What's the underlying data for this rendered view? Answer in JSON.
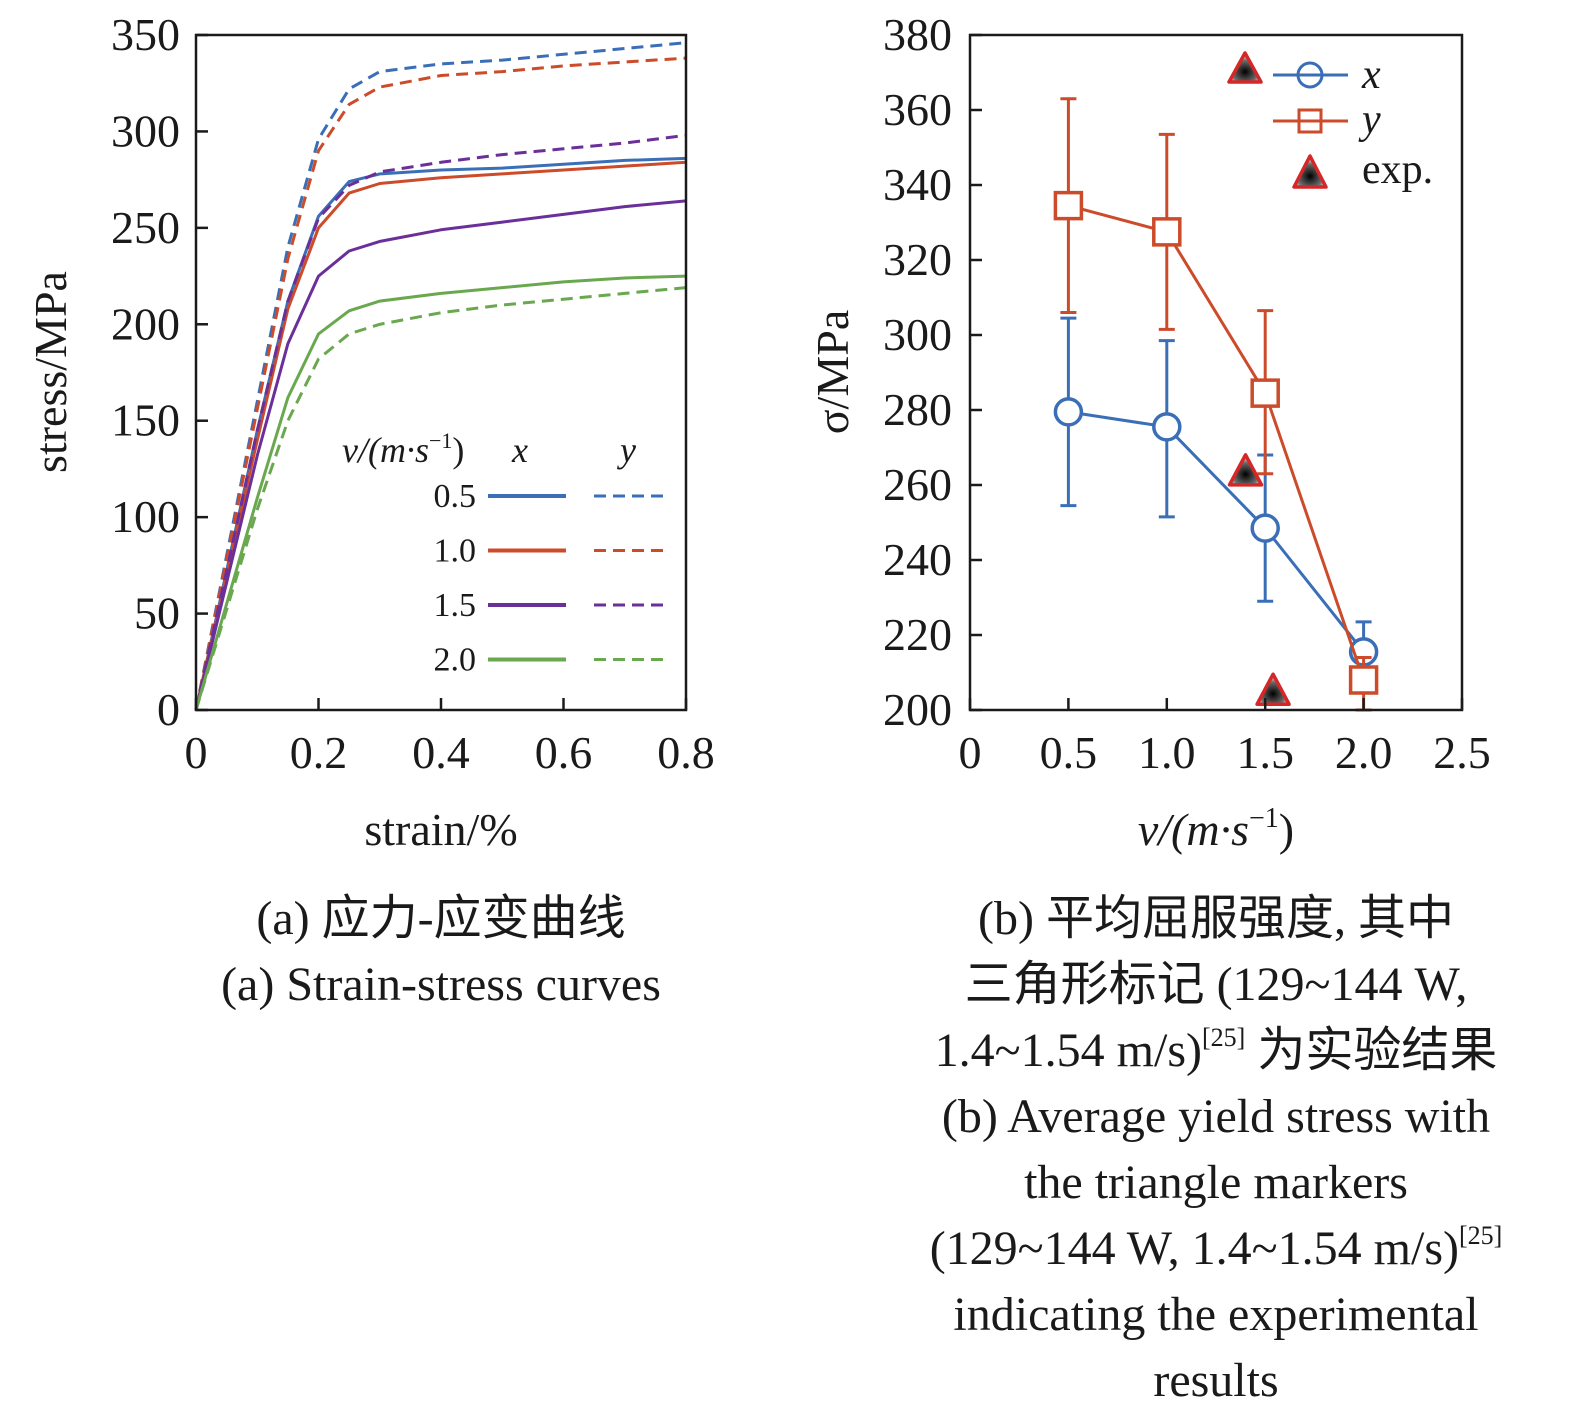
{
  "chart_data": [
    {
      "type": "line",
      "xlabel": "strain/%",
      "ylabel": "stress/MPa",
      "xlim": [
        0,
        0.8
      ],
      "ylim": [
        0,
        350
      ],
      "xticks": [
        "0",
        "0.2",
        "0.4",
        "0.6",
        "0.8"
      ],
      "yticks": [
        "0",
        "50",
        "100",
        "150",
        "200",
        "250",
        "300",
        "350"
      ],
      "grid": false,
      "legend": {
        "placement": "lower-right",
        "header": {
          "v": "v/(m·s",
          "exp": "−1",
          "close": ")",
          "x": "x",
          "y": "y"
        },
        "rows": [
          "0.5",
          "1.0",
          "1.5",
          "2.0"
        ]
      },
      "series": [
        {
          "name": "0.5 x",
          "color": "#3a6fb7",
          "style": "solid",
          "x": [
            0,
            0.05,
            0.1,
            0.15,
            0.2,
            0.25,
            0.3,
            0.4,
            0.5,
            0.6,
            0.7,
            0.8
          ],
          "y": [
            0,
            72,
            145,
            212,
            256,
            274,
            278,
            280,
            281,
            283,
            285,
            286
          ]
        },
        {
          "name": "0.5 y",
          "color": "#3a6fb7",
          "style": "dashed",
          "x": [
            0,
            0.05,
            0.1,
            0.15,
            0.2,
            0.25,
            0.3,
            0.4,
            0.5,
            0.6,
            0.7,
            0.8
          ],
          "y": [
            0,
            80,
            160,
            240,
            296,
            322,
            331,
            335,
            337,
            340,
            343,
            346
          ]
        },
        {
          "name": "1.0 x",
          "color": "#cc4b2a",
          "style": "solid",
          "x": [
            0,
            0.05,
            0.1,
            0.15,
            0.2,
            0.25,
            0.3,
            0.4,
            0.5,
            0.6,
            0.7,
            0.8
          ],
          "y": [
            0,
            70,
            140,
            208,
            250,
            268,
            273,
            276,
            278,
            280,
            282,
            284
          ]
        },
        {
          "name": "1.0 y",
          "color": "#cc4b2a",
          "style": "dashed",
          "x": [
            0,
            0.05,
            0.1,
            0.15,
            0.2,
            0.25,
            0.3,
            0.4,
            0.5,
            0.6,
            0.7,
            0.8
          ],
          "y": [
            0,
            78,
            156,
            234,
            290,
            314,
            323,
            329,
            331,
            334,
            336,
            338
          ]
        },
        {
          "name": "1.5 x",
          "color": "#6b2f9a",
          "style": "solid",
          "x": [
            0,
            0.05,
            0.1,
            0.15,
            0.2,
            0.25,
            0.3,
            0.4,
            0.5,
            0.6,
            0.7,
            0.8
          ],
          "y": [
            0,
            66,
            132,
            190,
            225,
            238,
            243,
            249,
            253,
            257,
            261,
            264
          ]
        },
        {
          "name": "1.5 y",
          "color": "#6b2f9a",
          "style": "dashed",
          "x": [
            0,
            0.05,
            0.1,
            0.15,
            0.2,
            0.25,
            0.3,
            0.4,
            0.5,
            0.6,
            0.7,
            0.8
          ],
          "y": [
            0,
            72,
            145,
            212,
            255,
            272,
            279,
            284,
            288,
            291,
            294,
            298
          ]
        },
        {
          "name": "2.0 x",
          "color": "#6aa84f",
          "style": "solid",
          "x": [
            0,
            0.05,
            0.1,
            0.15,
            0.2,
            0.25,
            0.3,
            0.4,
            0.5,
            0.6,
            0.7,
            0.8
          ],
          "y": [
            0,
            55,
            110,
            162,
            195,
            207,
            212,
            216,
            219,
            222,
            224,
            225
          ]
        },
        {
          "name": "2.0 y",
          "color": "#6aa84f",
          "style": "dashed",
          "x": [
            0,
            0.05,
            0.1,
            0.15,
            0.2,
            0.25,
            0.3,
            0.4,
            0.5,
            0.6,
            0.7,
            0.8
          ],
          "y": [
            0,
            52,
            104,
            150,
            182,
            195,
            200,
            206,
            210,
            213,
            216,
            219
          ]
        }
      ]
    },
    {
      "type": "line",
      "xlabel": {
        "v": "v/(m·s",
        "exp": "−1",
        "close": ")"
      },
      "ylabel": "σ/MPa",
      "xlim": [
        0,
        2.5
      ],
      "ylim": [
        200,
        380
      ],
      "xticks": [
        "0",
        "0.5",
        "1.0",
        "1.5",
        "2.0",
        "2.5"
      ],
      "yticks": [
        "200",
        "220",
        "240",
        "260",
        "280",
        "300",
        "320",
        "340",
        "360",
        "380"
      ],
      "grid": false,
      "legend": {
        "placement": "top-right",
        "entries": [
          "x",
          "y",
          "exp."
        ]
      },
      "series": [
        {
          "name": "x",
          "color": "#3a6fb7",
          "marker": "circle",
          "x": [
            0.5,
            1.0,
            1.5,
            2.0
          ],
          "y": [
            279.5,
            275.5,
            248.5,
            215.5
          ],
          "err_low": [
            254.5,
            251.5,
            229,
            208
          ],
          "err_high": [
            304.5,
            298.5,
            268,
            223.5
          ]
        },
        {
          "name": "y",
          "color": "#cc4b2a",
          "marker": "square",
          "x": [
            0.5,
            1.0,
            1.5,
            2.0
          ],
          "y": [
            334.5,
            327.5,
            284.5,
            208
          ],
          "err_low": [
            306,
            301.5,
            263,
            200
          ],
          "err_high": [
            363,
            353.5,
            306.5,
            214
          ]
        },
        {
          "name": "exp.",
          "color": "#d62728",
          "marker": "triangle",
          "x": [
            1.4,
            1.54
          ],
          "y": [
            263.5,
            205
          ]
        }
      ]
    }
  ],
  "captions": {
    "a_zh": "(a) 应力-应变曲线",
    "a_en": "(a) Strain-stress curves",
    "b_zh_1": "(b) 平均屈服强度, 其中",
    "b_zh_2": "三角形标记 (129~144 W,",
    "b_zh_3_pre": "1.4~1.54 m/s)",
    "b_zh_3_ref": "[25]",
    "b_zh_3_post": " 为实验结果",
    "b_en_1": "(b) Average yield stress with",
    "b_en_2": "the triangle markers",
    "b_en_3_pre": "(129~144 W, 1.4~1.54 m/s)",
    "b_en_3_ref": "[25]",
    "b_en_4": "indicating the experimental",
    "b_en_5": "results"
  }
}
